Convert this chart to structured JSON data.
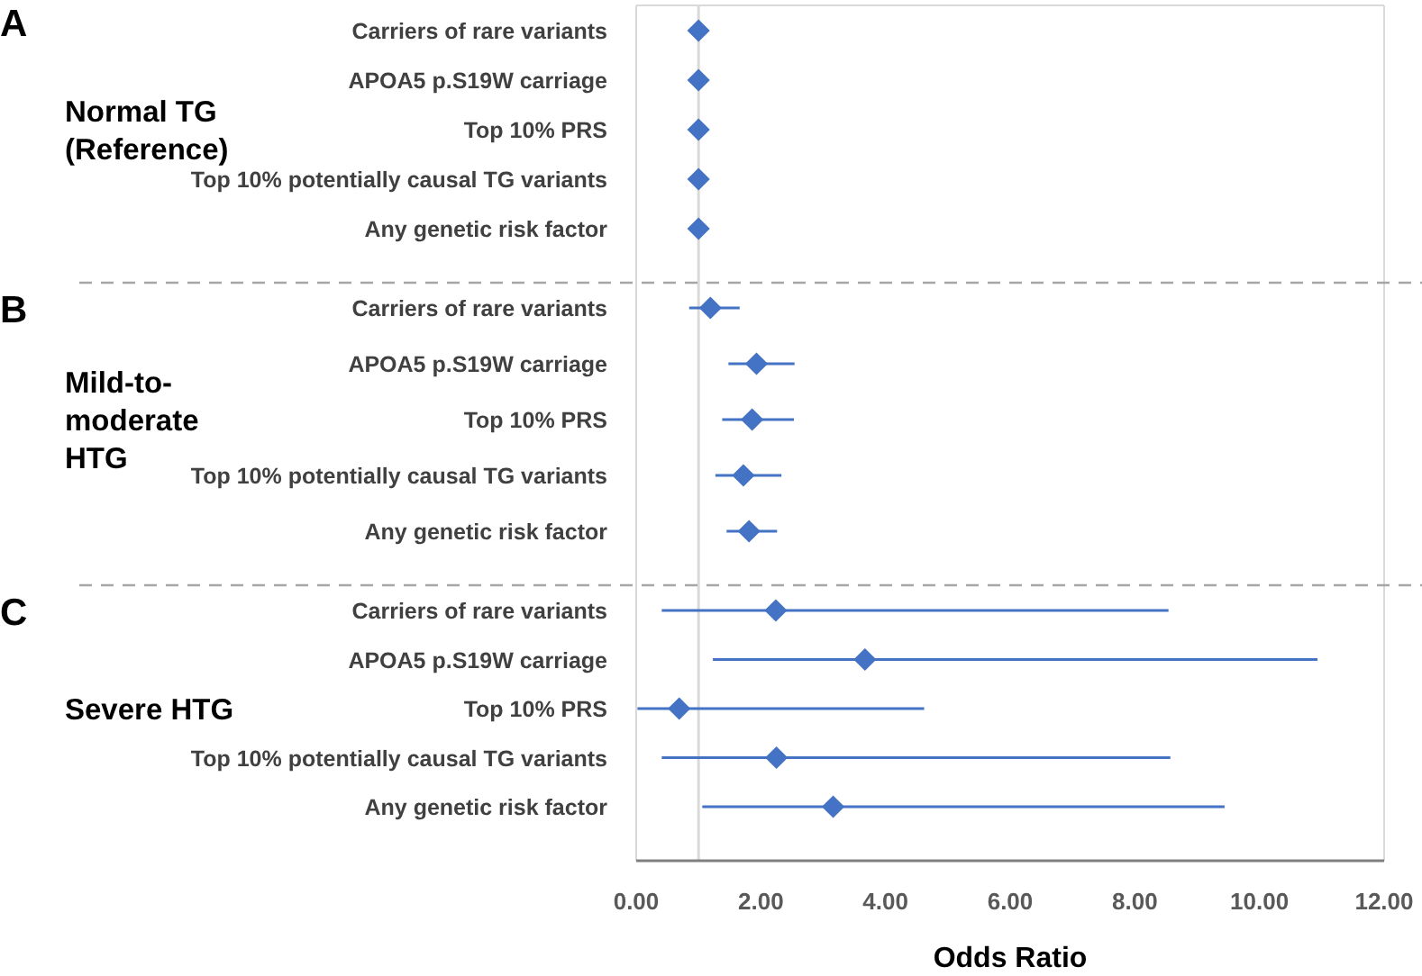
{
  "chart_data": [
    {
      "type": "scatter",
      "orientation": "horizontal",
      "title": "A",
      "subtitle": "Normal TG (Reference)",
      "categories": [
        "Carriers of rare variants",
        "APOA5 p.S19W carriage",
        "Top 10% PRS",
        "Top 10% potentially causal TG variants",
        "Any genetic risk factor"
      ],
      "values": [
        1,
        1,
        1,
        1,
        1
      ],
      "color": "#4472c4",
      "marker": "diamond",
      "xlim": [
        0,
        12
      ],
      "tick_labels": "y",
      "ref_lines": [
        {
          "axis": "x",
          "value": 1,
          "color": "#d9d9d9"
        }
      ]
    },
    {
      "type": "scatter",
      "orientation": "horizontal",
      "title": "B",
      "subtitle": "Mild-to-moderate HTG",
      "categories": [
        "Carriers of rare variants",
        "APOA5 p.S19W carriage",
        "Top 10% PRS",
        "Top 10% potentially causal TG variants",
        "Any genetic risk factor"
      ],
      "values": [
        1.19,
        1.93,
        1.86,
        1.72,
        1.81
      ],
      "errors": [
        [
          0.85,
          1.66
        ],
        [
          1.48,
          2.54
        ],
        [
          1.38,
          2.53
        ],
        [
          1.27,
          2.33
        ],
        [
          1.45,
          2.26
        ]
      ],
      "color": "#4472c4",
      "marker": "diamond",
      "xlim": [
        0,
        12
      ],
      "tick_labels": "y",
      "ref_lines": [
        {
          "axis": "x",
          "value": 1,
          "color": "#d9d9d9"
        }
      ]
    },
    {
      "type": "scatter",
      "orientation": "horizontal",
      "title": "C",
      "subtitle": "Severe HTG",
      "xlabel": "Odds Ratio",
      "categories": [
        "Carriers of rare variants",
        "APOA5 p.S19W carriage",
        "Top 10% PRS",
        "Top 10% potentially causal TG variants",
        "Any genetic risk factor"
      ],
      "values": [
        2.24,
        3.67,
        0.69,
        2.25,
        3.16
      ],
      "errors": [
        [
          0.41,
          8.54
        ],
        [
          1.23,
          10.93
        ],
        [
          0.02,
          4.62
        ],
        [
          0.41,
          8.57
        ],
        [
          1.06,
          9.44
        ]
      ],
      "color": "#4472c4",
      "marker": "diamond",
      "xlim": [
        0,
        12
      ],
      "xticks": [
        {
          "value": 0,
          "label": "0.00"
        },
        {
          "value": 2,
          "label": "2.00"
        },
        {
          "value": 4,
          "label": "4.00"
        },
        {
          "value": 6,
          "label": "6.00"
        },
        {
          "value": 8,
          "label": "8.00"
        },
        {
          "value": 10,
          "label": "10.00"
        },
        {
          "value": 12,
          "label": "12.00"
        }
      ],
      "ref_lines": [
        {
          "axis": "x",
          "value": 1,
          "color": "#d9d9d9"
        }
      ]
    }
  ]
}
